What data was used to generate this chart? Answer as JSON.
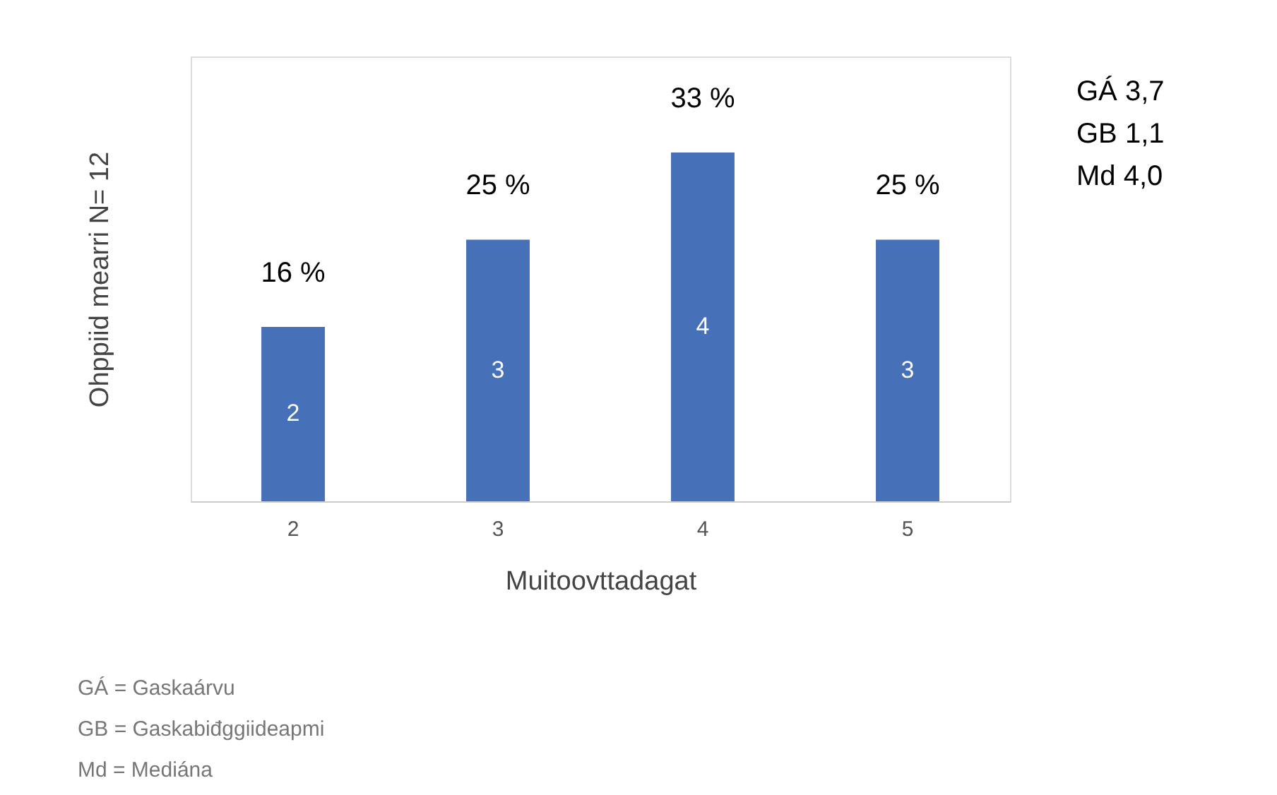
{
  "chart_data": {
    "type": "bar",
    "categories": [
      "2",
      "3",
      "4",
      "5"
    ],
    "values": [
      2,
      3,
      4,
      3
    ],
    "color": "#4670b8",
    "ylim": [
      0,
      5.1
    ],
    "data_labels": true,
    "grid": false,
    "xlabel": "Muitoovttadagat",
    "ylabel": "Ohppiid mearri N= 12",
    "annotations": [
      {
        "text": "16 %",
        "x": "2",
        "y": 2
      },
      {
        "text": "25 %",
        "x": "3",
        "y": 3
      },
      {
        "text": "33 %",
        "x": "4",
        "y": 4
      },
      {
        "text": "25 %",
        "x": "5",
        "y": 3
      },
      "GÁ 3,7",
      "GB 1,1",
      "Md 4,0",
      "GÁ = Gaskaárvu",
      "GB = Gaskabiđggiideapmi",
      "Md = Mediána"
    ]
  }
}
